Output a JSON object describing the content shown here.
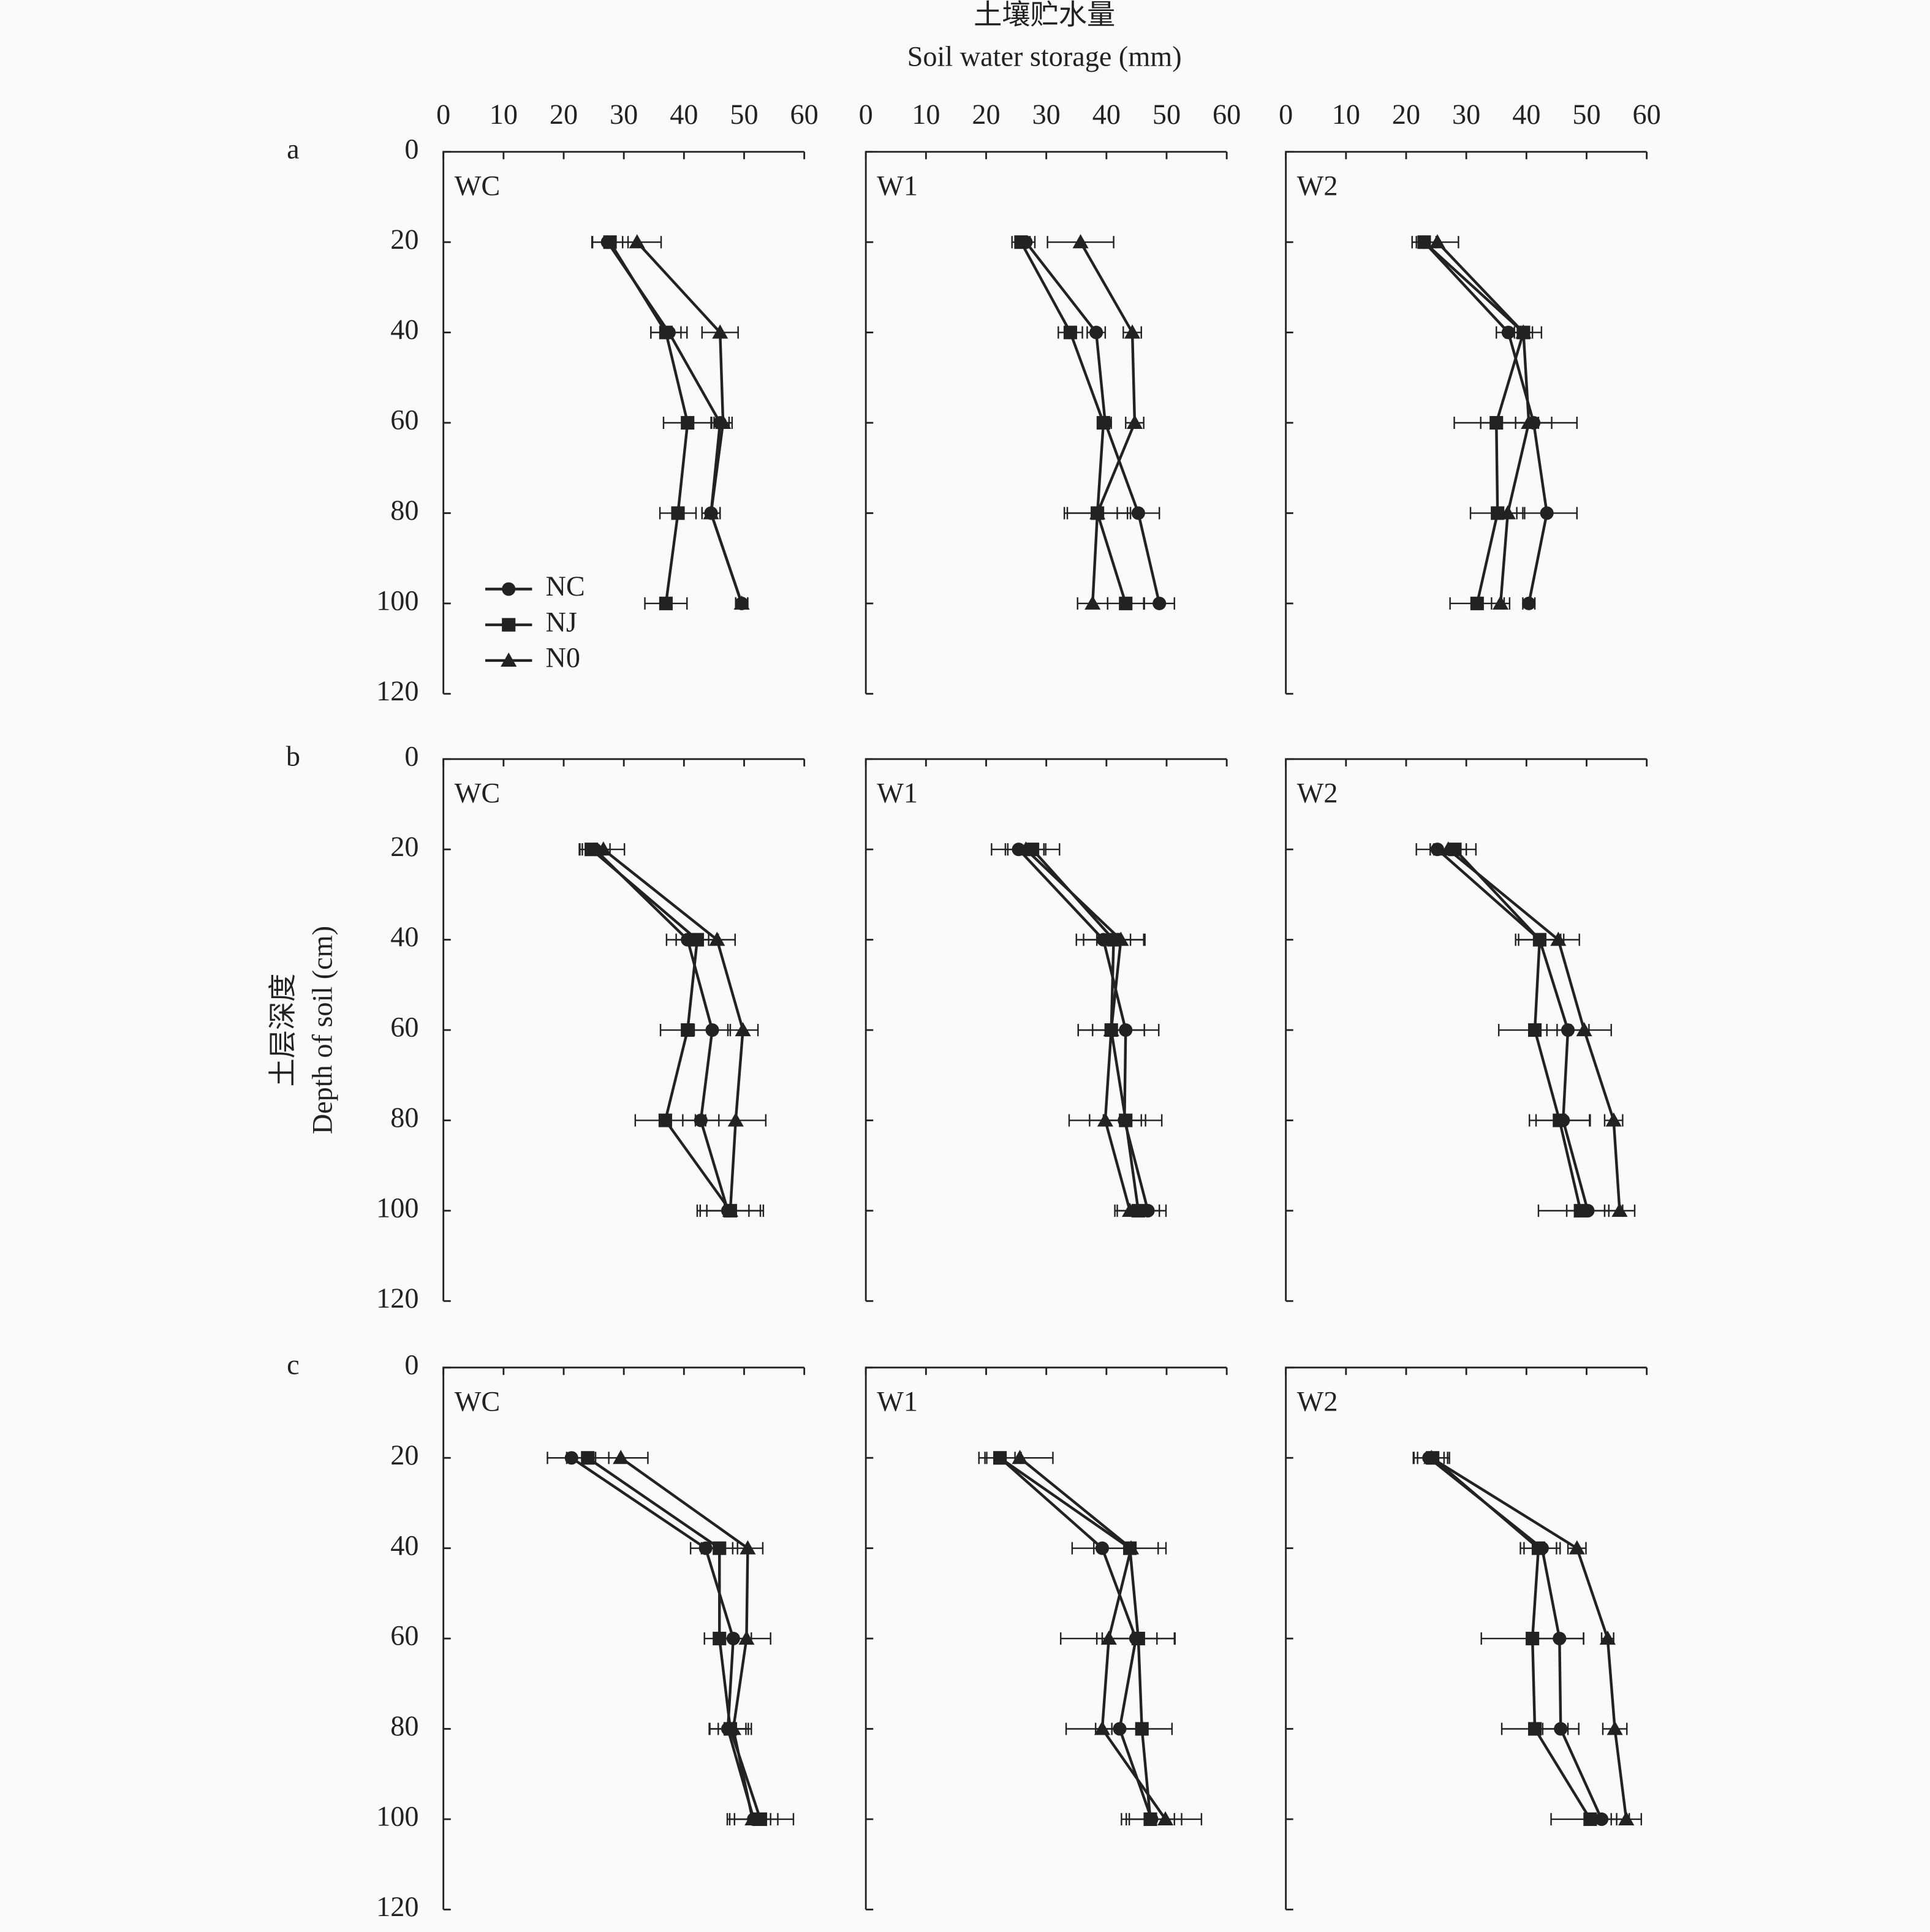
{
  "x_title": [
    "土壤贮水量",
    "Soil water storage (mm)"
  ],
  "y_title": [
    "土层深度",
    "Depth of soil (cm)"
  ],
  "chart_data": [
    {
      "type": "line",
      "row_label": "a",
      "label": "WC",
      "xlim": [
        0,
        60
      ],
      "xticks": [
        0,
        10,
        20,
        30,
        40,
        50,
        60
      ],
      "ylim": [
        0,
        120
      ],
      "yticks": [
        0,
        20,
        40,
        60,
        80,
        100,
        120
      ],
      "y_inverted": true,
      "show_xtick_labels": true,
      "show_ytick_labels": true,
      "categories": [
        20,
        40,
        60,
        80,
        100
      ],
      "legend": [
        {
          "name": "NC",
          "marker": "circle"
        },
        {
          "name": "NJ",
          "marker": "square"
        },
        {
          "name": "N0",
          "marker": "triangle"
        }
      ],
      "series": [
        {
          "marker": "circle",
          "color": "#222222",
          "values": [
            27.3,
            37.5,
            46,
            44.5,
            49.6
          ],
          "errors": [
            2.5,
            3,
            1.5,
            1.5,
            1
          ]
        },
        {
          "marker": "square",
          "color": "#222222",
          "values": [
            27.7,
            37,
            40.6,
            39,
            37
          ],
          "errors": [
            3,
            2.5,
            4,
            3,
            3.5
          ]
        },
        {
          "marker": "triangle",
          "color": "#222222",
          "values": [
            32.2,
            46,
            46.5,
            44.5,
            49.6
          ],
          "errors": [
            4,
            3,
            1.5,
            1.5,
            1
          ]
        }
      ]
    },
    {
      "type": "line",
      "label": "W1",
      "xlim": [
        0,
        60
      ],
      "xticks": [
        0,
        10,
        20,
        30,
        40,
        50,
        60
      ],
      "ylim": [
        0,
        120
      ],
      "yticks": [
        0,
        20,
        40,
        60,
        80,
        100,
        120
      ],
      "y_inverted": true,
      "show_xtick_labels": true,
      "show_ytick_labels": false,
      "categories": [
        20,
        40,
        60,
        80,
        100
      ],
      "series": [
        {
          "marker": "circle",
          "color": "#222222",
          "values": [
            26.6,
            38.3,
            39.8,
            45.3,
            48.8
          ],
          "errors": [
            1.5,
            1.5,
            1,
            3.5,
            2.5
          ]
        },
        {
          "marker": "square",
          "color": "#222222",
          "values": [
            25.8,
            34,
            39.5,
            38.5,
            43.2
          ],
          "errors": [
            1.5,
            2,
            1,
            5.5,
            3
          ]
        },
        {
          "marker": "triangle",
          "color": "#222222",
          "values": [
            35.7,
            44.3,
            44.7,
            38.5,
            37.7
          ],
          "errors": [
            5.5,
            1.5,
            1.5,
            5,
            2.5
          ]
        }
      ]
    },
    {
      "type": "line",
      "label": "W2",
      "xlim": [
        0,
        60
      ],
      "xticks": [
        0,
        10,
        20,
        30,
        40,
        50,
        60
      ],
      "ylim": [
        0,
        120
      ],
      "yticks": [
        0,
        20,
        40,
        60,
        80,
        100,
        120
      ],
      "y_inverted": true,
      "show_xtick_labels": true,
      "show_ytick_labels": false,
      "categories": [
        20,
        40,
        60,
        80,
        100
      ],
      "series": [
        {
          "marker": "circle",
          "color": "#222222",
          "values": [
            23,
            37,
            41.2,
            43.4,
            40.4
          ],
          "errors": [
            2,
            2,
            3,
            5,
            1
          ]
        },
        {
          "marker": "square",
          "color": "#222222",
          "values": [
            23,
            39.5,
            35,
            35.2,
            31.8
          ],
          "errors": [
            2,
            3,
            7,
            4.5,
            4.5
          ]
        },
        {
          "marker": "triangle",
          "color": "#222222",
          "values": [
            25.2,
            39.5,
            40.4,
            36.9,
            35.7
          ],
          "errors": [
            3.5,
            1.5,
            8,
            2.5,
            1.5
          ]
        }
      ]
    },
    {
      "type": "line",
      "row_label": "b",
      "label": "WC",
      "xlim": [
        0,
        60
      ],
      "xticks": [
        0,
        10,
        20,
        30,
        40,
        50,
        60
      ],
      "ylim": [
        0,
        120
      ],
      "yticks": [
        0,
        20,
        40,
        60,
        80,
        100,
        120
      ],
      "y_inverted": true,
      "show_xtick_labels": false,
      "show_ytick_labels": true,
      "categories": [
        20,
        40,
        60,
        80,
        100
      ],
      "series": [
        {
          "marker": "circle",
          "color": "#222222",
          "values": [
            25.2,
            40.6,
            44.7,
            42.8,
            47.3
          ],
          "errors": [
            2.5,
            3.5,
            3,
            3,
            3.5
          ]
        },
        {
          "marker": "square",
          "color": "#222222",
          "values": [
            24.6,
            42.2,
            40.6,
            36.9,
            47.7
          ],
          "errors": [
            2,
            3.5,
            4.5,
            5,
            5
          ]
        },
        {
          "marker": "triangle",
          "color": "#222222",
          "values": [
            26.6,
            45.5,
            49.8,
            48.6,
            47.7
          ],
          "errors": [
            3.5,
            3,
            2.5,
            5,
            5.5
          ]
        }
      ]
    },
    {
      "type": "line",
      "label": "W1",
      "xlim": [
        0,
        60
      ],
      "xticks": [
        0,
        10,
        20,
        30,
        40,
        50,
        60
      ],
      "ylim": [
        0,
        120
      ],
      "yticks": [
        0,
        20,
        40,
        60,
        80,
        100,
        120
      ],
      "y_inverted": true,
      "show_xtick_labels": false,
      "show_ytick_labels": false,
      "categories": [
        20,
        40,
        60,
        80,
        100
      ],
      "series": [
        {
          "marker": "circle",
          "color": "#222222",
          "values": [
            25.4,
            39.5,
            43.2,
            43,
            46.9
          ],
          "errors": [
            4.5,
            4.5,
            5.5,
            3.5,
            3
          ]
        },
        {
          "marker": "square",
          "color": "#222222",
          "values": [
            27.7,
            41.2,
            40.8,
            43.2,
            45.3
          ],
          "errors": [
            4.5,
            5,
            5.5,
            6,
            3.5
          ]
        },
        {
          "marker": "triangle",
          "color": "#222222",
          "values": [
            26.6,
            42.4,
            40.8,
            39.8,
            43.9
          ],
          "errors": [
            3,
            4,
            5.5,
            6,
            2.5
          ]
        }
      ]
    },
    {
      "type": "line",
      "label": "W2",
      "xlim": [
        0,
        60
      ],
      "xticks": [
        0,
        10,
        20,
        30,
        40,
        50,
        60
      ],
      "ylim": [
        0,
        120
      ],
      "yticks": [
        0,
        20,
        40,
        60,
        80,
        100,
        120
      ],
      "y_inverted": true,
      "show_xtick_labels": false,
      "show_ytick_labels": false,
      "categories": [
        20,
        40,
        60,
        80,
        100
      ],
      "series": [
        {
          "marker": "circle",
          "color": "#222222",
          "values": [
            25.2,
            42.2,
            46.9,
            46.1,
            50.2
          ],
          "errors": [
            3.5,
            4,
            3.5,
            4.5,
            3.5
          ]
        },
        {
          "marker": "square",
          "color": "#222222",
          "values": [
            28.1,
            42.2,
            41.4,
            45.5,
            49
          ],
          "errors": [
            3.5,
            3.5,
            6,
            5,
            7
          ]
        },
        {
          "marker": "triangle",
          "color": "#222222",
          "values": [
            27,
            45.3,
            49.6,
            54.5,
            55.5
          ],
          "errors": [
            3,
            3.5,
            4.5,
            1.5,
            2.5
          ]
        }
      ]
    },
    {
      "type": "line",
      "row_label": "c",
      "label": "WC",
      "xlim": [
        0,
        60
      ],
      "xticks": [
        0,
        10,
        20,
        30,
        40,
        50,
        60
      ],
      "ylim": [
        0,
        120
      ],
      "yticks": [
        0,
        20,
        40,
        60,
        80,
        100,
        120
      ],
      "y_inverted": true,
      "show_xtick_labels": false,
      "show_ytick_labels": true,
      "categories": [
        20,
        40,
        60,
        80,
        100
      ],
      "series": [
        {
          "marker": "circle",
          "color": "#222222",
          "values": [
            21.3,
            43.6,
            48.2,
            47.3,
            51.6
          ],
          "errors": [
            4,
            2.5,
            3,
            3,
            4
          ]
        },
        {
          "marker": "square",
          "color": "#222222",
          "values": [
            24,
            45.9,
            45.9,
            47.7,
            52.7
          ],
          "errors": [
            3.5,
            3,
            2.5,
            3.5,
            5.5
          ]
        },
        {
          "marker": "triangle",
          "color": "#222222",
          "values": [
            29.5,
            50.6,
            50.4,
            48.2,
            51.4
          ],
          "errors": [
            4.5,
            2.5,
            4,
            2.5,
            3
          ]
        }
      ]
    },
    {
      "type": "line",
      "label": "W1",
      "xlim": [
        0,
        60
      ],
      "xticks": [
        0,
        10,
        20,
        30,
        40,
        50,
        60
      ],
      "ylim": [
        0,
        120
      ],
      "yticks": [
        0,
        20,
        40,
        60,
        80,
        100,
        120
      ],
      "y_inverted": true,
      "show_xtick_labels": false,
      "show_ytick_labels": false,
      "categories": [
        20,
        40,
        60,
        80,
        100
      ],
      "series": [
        {
          "marker": "circle",
          "color": "#222222",
          "values": [
            22.3,
            39.3,
            44.9,
            42.2,
            47.5
          ],
          "errors": [
            2.5,
            5,
            6.5,
            4,
            5
          ]
        },
        {
          "marker": "square",
          "color": "#222222",
          "values": [
            22.3,
            43.9,
            45.3,
            45.9,
            47.3
          ],
          "errors": [
            3.5,
            6,
            6,
            5,
            4
          ]
        },
        {
          "marker": "triangle",
          "color": "#222222",
          "values": [
            25.6,
            44.1,
            40.4,
            39.3,
            49.8
          ],
          "errors": [
            5.5,
            4.5,
            8,
            6,
            6
          ]
        }
      ]
    },
    {
      "type": "line",
      "label": "W2",
      "xlim": [
        0,
        60
      ],
      "xticks": [
        0,
        10,
        20,
        30,
        40,
        50,
        60
      ],
      "ylim": [
        0,
        120
      ],
      "yticks": [
        0,
        20,
        40,
        60,
        80,
        100,
        120
      ],
      "y_inverted": true,
      "show_xtick_labels": false,
      "show_ytick_labels": false,
      "categories": [
        20,
        40,
        60,
        80,
        100
      ],
      "series": [
        {
          "marker": "circle",
          "color": "#222222",
          "values": [
            23.8,
            42.6,
            45.5,
            45.7,
            52.5
          ],
          "errors": [
            2.5,
            3,
            4,
            3,
            2.5
          ]
        },
        {
          "marker": "square",
          "color": "#222222",
          "values": [
            24.4,
            42,
            41,
            41.4,
            50.6
          ],
          "errors": [
            2.5,
            3,
            8.5,
            5.5,
            6.5
          ]
        },
        {
          "marker": "triangle",
          "color": "#222222",
          "values": [
            24.2,
            48.4,
            53.5,
            54.7,
            56.6
          ],
          "errors": [
            3,
            1.5,
            1,
            2,
            2.5
          ]
        }
      ]
    }
  ]
}
